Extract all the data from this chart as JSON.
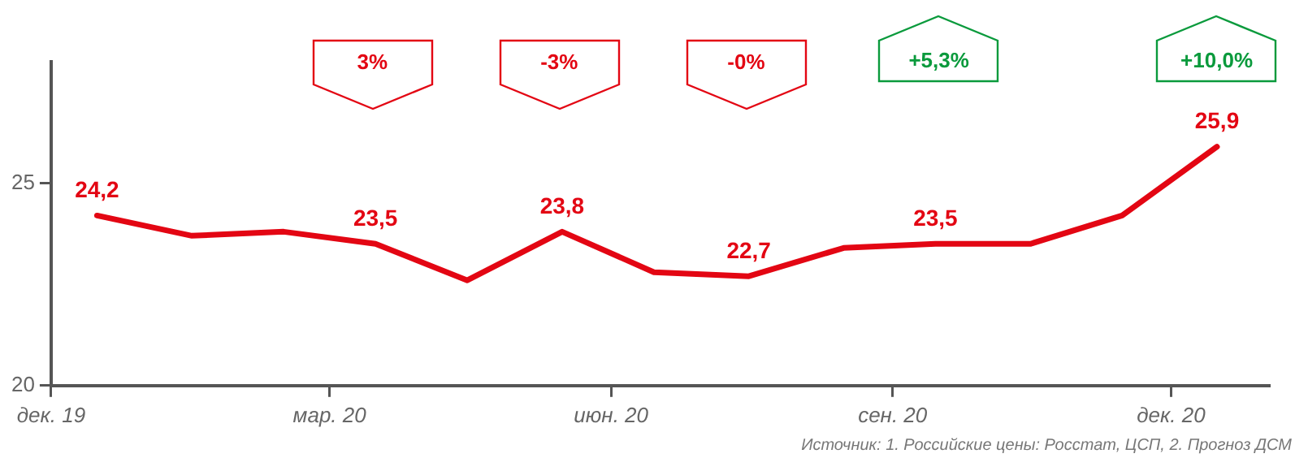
{
  "chart_data": {
    "type": "line",
    "x": [
      "2019-12-16",
      "2020-01-16",
      "2020-02-15",
      "2020-03-16",
      "2020-04-15",
      "2020-05-16",
      "2020-06-15",
      "2020-07-16",
      "2020-08-16",
      "2020-09-15",
      "2020-10-16",
      "2020-11-15",
      "2020-12-16"
    ],
    "series": [
      {
        "color": "#e30613",
        "values": [
          24.2,
          23.7,
          23.8,
          23.5,
          22.6,
          23.8,
          22.8,
          22.7,
          23.4,
          23.5,
          23.5,
          24.2,
          25.9
        ],
        "value_labels": [
          "24,2",
          null,
          null,
          "23,5",
          null,
          "23,8",
          null,
          "22,7",
          null,
          "23,5",
          null,
          null,
          "25,9"
        ]
      }
    ],
    "xlim": [
      "2019-12-01",
      "2021-01-02"
    ],
    "xticks": [
      {
        "value": "2019-12-01",
        "label": "дек. 19"
      },
      {
        "value": "2020-03-01",
        "label": "мар. 20"
      },
      {
        "value": "2020-06-01",
        "label": "июн. 20"
      },
      {
        "value": "2020-09-01",
        "label": "сен. 20"
      },
      {
        "value": "2020-12-01",
        "label": "дек. 20"
      }
    ],
    "ylim": [
      20,
      28
    ],
    "yticks": [
      20,
      25
    ],
    "grid": false,
    "legend": false,
    "marker": "none",
    "line_style": "solid",
    "annotations": [
      "3%",
      "-3%",
      "-0%",
      "+5,3%",
      "+10,0%",
      "Источник: 1. Российские цены: Росстат, ЦСП, 2. Прогноз ДСМ"
    ]
  }
}
